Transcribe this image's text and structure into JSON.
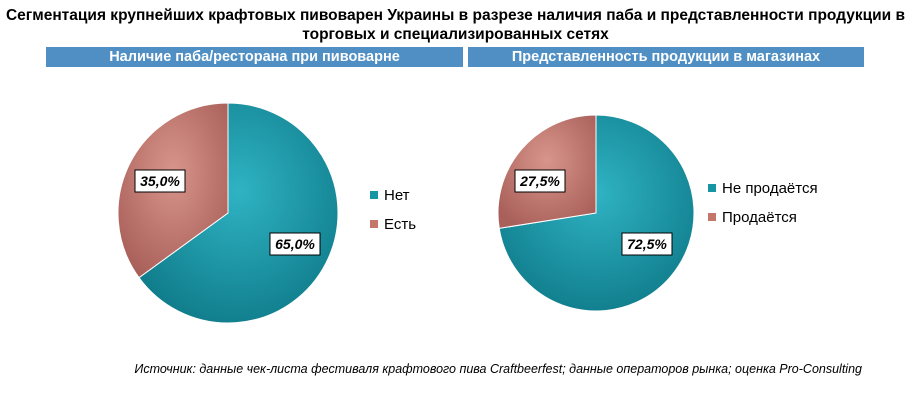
{
  "title": "Сегментация крупнейших крафтовых пивоварен Украины в разрезе наличия паба и представленности продукции в торговых и специализированных сетях",
  "source": "Источник: данные чек-листа фестиваля крафтового пива Craftbeerfest; данные операторов рынка; оценка Pro-Consulting",
  "colors": {
    "teal": "#1795a5",
    "rose": "#c4766b",
    "band": "#4f8fc4"
  },
  "chart_data": [
    {
      "type": "pie",
      "title": "Наличие паба/ресторана при пивоварне",
      "categories": [
        "Нет",
        "Есть"
      ],
      "values": [
        65.0,
        35.0
      ],
      "labels": [
        "65,0%",
        "35,0%"
      ],
      "colors": [
        "#1795a5",
        "#c4766b"
      ],
      "legend": "right"
    },
    {
      "type": "pie",
      "title": "Представленность продукции в магазинах",
      "categories": [
        "Не продаётся",
        "Продаётся"
      ],
      "values": [
        72.5,
        27.5
      ],
      "labels": [
        "72,5%",
        "27,5%"
      ],
      "colors": [
        "#1795a5",
        "#c4766b"
      ],
      "legend": "right"
    }
  ]
}
